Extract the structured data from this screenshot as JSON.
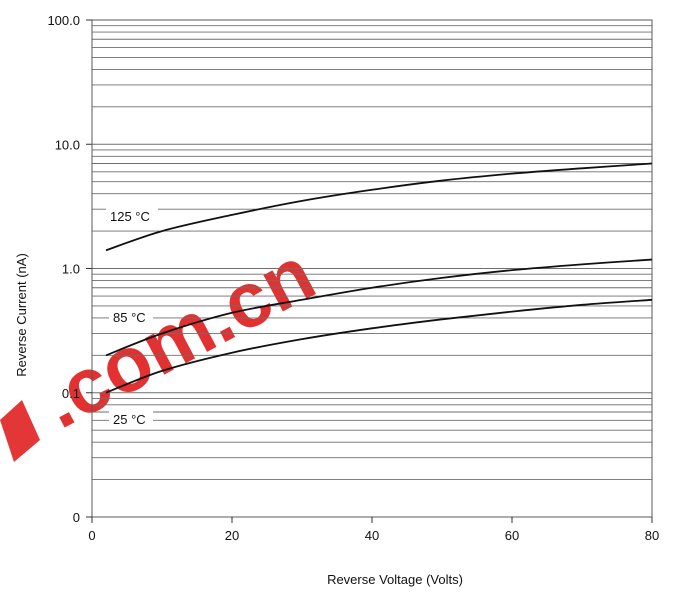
{
  "chart_data": {
    "type": "line",
    "xlabel": "Reverse Voltage (Volts)",
    "ylabel": "Reverse Current (nA)",
    "xlim": [
      0,
      80
    ],
    "ylim": [
      0.01,
      100
    ],
    "yscale": "log",
    "grid": true,
    "x_ticks": [
      {
        "value": 0,
        "label": "0"
      },
      {
        "value": 20,
        "label": "20"
      },
      {
        "value": 40,
        "label": "40"
      },
      {
        "value": 60,
        "label": "60"
      },
      {
        "value": 80,
        "label": "80"
      }
    ],
    "y_ticks": [
      {
        "value": 0.01,
        "label": "0"
      },
      {
        "value": 0.1,
        "label": "0.1"
      },
      {
        "value": 1,
        "label": "1.0"
      },
      {
        "value": 10,
        "label": "10.0"
      },
      {
        "value": 100,
        "label": "100.0"
      }
    ],
    "series": [
      {
        "name": "125 °C",
        "x": [
          2,
          10,
          20,
          30,
          40,
          50,
          60,
          70,
          80
        ],
        "y": [
          1.4,
          2.0,
          2.7,
          3.5,
          4.3,
          5.1,
          5.8,
          6.4,
          7.0
        ]
      },
      {
        "name": "85 °C",
        "x": [
          2,
          10,
          20,
          30,
          40,
          50,
          60,
          70,
          80
        ],
        "y": [
          0.2,
          0.3,
          0.44,
          0.56,
          0.7,
          0.84,
          0.97,
          1.08,
          1.18
        ]
      },
      {
        "name": "25 °C",
        "x": [
          2,
          10,
          20,
          30,
          40,
          50,
          60,
          70,
          80
        ],
        "y": [
          0.1,
          0.15,
          0.21,
          0.27,
          0.33,
          0.39,
          0.45,
          0.51,
          0.56
        ]
      }
    ]
  },
  "watermark": {
    "text": ".com.cn",
    "color": "#e02020"
  }
}
